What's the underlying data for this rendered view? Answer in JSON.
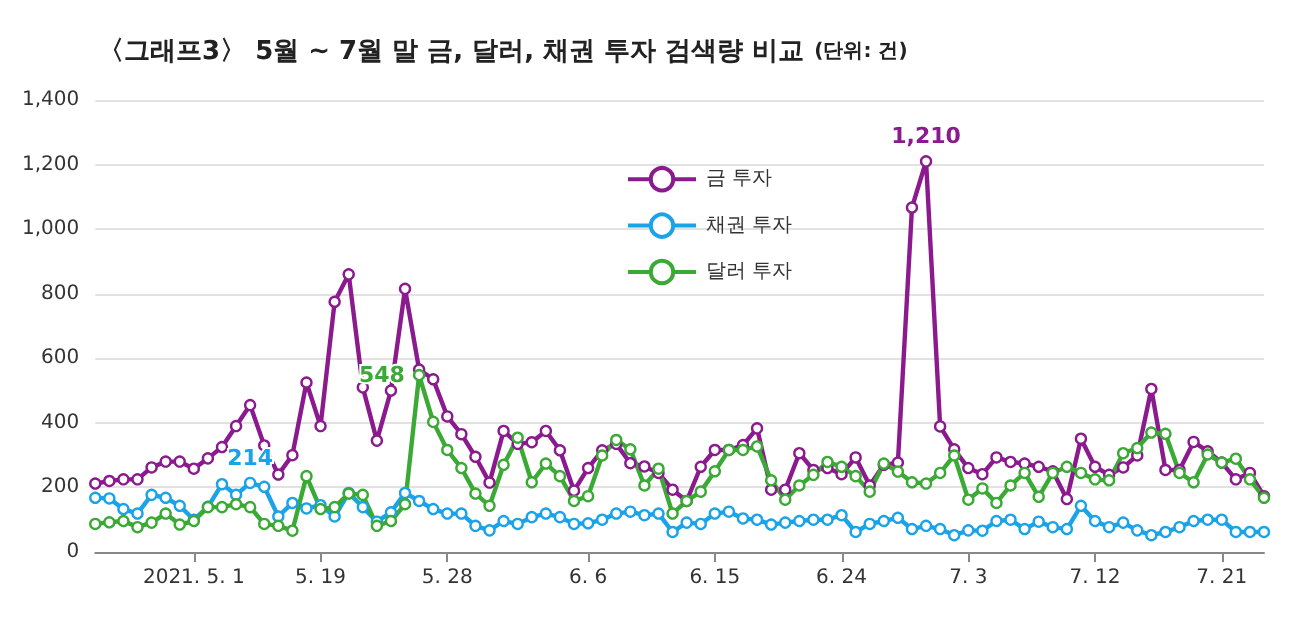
{
  "chart_data": {
    "type": "line",
    "title": "〈그래프3〉 5월 ~ 7월 말 금, 달러, 채권 투자 검색량 비교",
    "subtitle": "(단위: 건)",
    "categories": [
      null,
      null,
      null,
      null,
      null,
      null,
      null,
      "2021. 5. 1",
      null,
      null,
      null,
      null,
      null,
      null,
      null,
      null,
      "5. 19",
      null,
      null,
      null,
      null,
      null,
      null,
      null,
      null,
      "5. 28",
      null,
      null,
      null,
      null,
      null,
      null,
      null,
      null,
      null,
      "6. 6",
      null,
      null,
      null,
      null,
      null,
      null,
      null,
      null,
      "6. 15",
      null,
      null,
      null,
      null,
      null,
      null,
      null,
      null,
      "6. 24",
      null,
      null,
      null,
      null,
      null,
      null,
      null,
      null,
      "7. 3",
      null,
      null,
      null,
      null,
      null,
      null,
      null,
      null,
      "7. 12",
      null,
      null,
      null,
      null,
      null,
      null,
      null,
      null,
      "7. 21",
      null,
      null,
      null
    ],
    "series": [
      {
        "name": "금 투자",
        "color": "#8b1a8f",
        "values": [
          212,
          220,
          225,
          225,
          262,
          280,
          280,
          258,
          290,
          325,
          390,
          455,
          330,
          240,
          300,
          525,
          390,
          775,
          860,
          510,
          345,
          500,
          815,
          565,
          535,
          420,
          365,
          295,
          215,
          375,
          335,
          340,
          375,
          315,
          190,
          260,
          315,
          335,
          275,
          265,
          245,
          193,
          158,
          264,
          316,
          316,
          331,
          383,
          193,
          193,
          306,
          254,
          260,
          241,
          293,
          206,
          270,
          277,
          1067,
          1210,
          389,
          318,
          260,
          241,
          293,
          279,
          274,
          264,
          250,
          164,
          351,
          264,
          239,
          262,
          299,
          505,
          254,
          254,
          341,
          312,
          277,
          225,
          245,
          173
        ],
        "value_labels": [
          null,
          null,
          null,
          null,
          null,
          null,
          null,
          null,
          null,
          null,
          null,
          null,
          null,
          null,
          null,
          null,
          null,
          null,
          null,
          null,
          null,
          null,
          null,
          null,
          null,
          null,
          null,
          null,
          null,
          null,
          null,
          null,
          null,
          null,
          null,
          null,
          null,
          null,
          null,
          null,
          null,
          null,
          null,
          null,
          null,
          null,
          null,
          null,
          null,
          null,
          null,
          null,
          null,
          null,
          null,
          null,
          null,
          null,
          null,
          "1,210",
          null,
          null,
          null,
          null,
          null,
          null,
          null,
          null,
          null,
          null,
          null,
          null,
          null,
          null,
          null,
          null,
          null,
          null,
          null,
          null,
          null,
          null,
          null,
          null
        ]
      },
      {
        "name": "채권 투자",
        "color": "#1aa3e8",
        "values": [
          168,
          166,
          133,
          119,
          177,
          168,
          143,
          100,
          140,
          210,
          177,
          214,
          202,
          110,
          152,
          135,
          145,
          110,
          183,
          139,
          94,
          123,
          183,
          158,
          133,
          119,
          119,
          81,
          67,
          96,
          87,
          108,
          119,
          108,
          87,
          89,
          100,
          119,
          125,
          114,
          119,
          62,
          91,
          87,
          119,
          125,
          104,
          100,
          85,
          91,
          96,
          100,
          100,
          114,
          62,
          87,
          96,
          106,
          71,
          81,
          71,
          52,
          67,
          66,
          96,
          100,
          71,
          94,
          77,
          71,
          143,
          96,
          77,
          91,
          67,
          52,
          62,
          77,
          96,
          100,
          100,
          62,
          62,
          62
        ],
        "value_labels": [
          null,
          null,
          null,
          null,
          null,
          null,
          null,
          null,
          null,
          null,
          null,
          "214",
          null,
          null,
          null,
          null,
          null,
          null,
          null,
          null,
          null,
          null,
          null,
          null,
          null,
          null,
          null,
          null,
          null,
          null,
          null,
          null,
          null,
          null,
          null,
          null,
          null,
          null,
          null,
          null,
          null,
          null,
          null,
          null,
          null,
          null,
          null,
          null,
          null,
          null,
          null,
          null,
          null,
          null,
          null,
          null,
          null,
          null,
          null,
          null,
          null,
          null,
          null,
          null,
          null,
          null,
          null,
          null,
          null,
          null,
          null,
          null,
          null,
          null,
          null,
          null,
          null,
          null,
          null,
          null,
          null,
          null,
          null,
          null
        ]
      },
      {
        "name": "달러 투자",
        "color": "#3aaa35",
        "values": [
          87,
          92,
          96,
          77,
          91,
          119,
          85,
          96,
          139,
          139,
          148,
          139,
          87,
          81,
          66,
          235,
          133,
          139,
          181,
          177,
          81,
          96,
          148,
          548,
          403,
          316,
          260,
          181,
          143,
          270,
          354,
          216,
          274,
          235,
          158,
          173,
          299,
          347,
          318,
          206,
          258,
          119,
          158,
          187,
          250,
          316,
          316,
          327,
          222,
          162,
          206,
          239,
          279,
          264,
          235,
          187,
          274,
          249,
          216,
          212,
          245,
          299,
          162,
          197,
          152,
          206,
          245,
          171,
          245,
          264,
          245,
          225,
          222,
          306,
          322,
          370,
          366,
          245,
          216,
          302,
          277,
          289,
          225,
          168
        ],
        "value_labels": [
          null,
          null,
          null,
          null,
          null,
          null,
          null,
          null,
          null,
          null,
          null,
          null,
          null,
          null,
          null,
          null,
          null,
          null,
          null,
          null,
          null,
          null,
          null,
          "548",
          null,
          null,
          null,
          null,
          null,
          null,
          null,
          null,
          null,
          null,
          null,
          null,
          null,
          null,
          null,
          null,
          null,
          null,
          null,
          null,
          null,
          null,
          null,
          null,
          null,
          null,
          null,
          null,
          null,
          null,
          null,
          null,
          null,
          null,
          null,
          null,
          null,
          null,
          null,
          null,
          null,
          null,
          null,
          null,
          null,
          null,
          null,
          null,
          null,
          null,
          null,
          null,
          null,
          null,
          null,
          null,
          null,
          null,
          null,
          null
        ]
      }
    ],
    "ylim": [
      0,
      1400
    ],
    "yticks": [
      0,
      200,
      400,
      600,
      800,
      {
        "value": 1000,
        "label": "1,000"
      },
      {
        "value": 1200,
        "label": "1,200"
      },
      {
        "value": 1400,
        "label": "1,400"
      }
    ],
    "grid": "y",
    "legend": "top",
    "marker": "circle",
    "line_style": "solid"
  }
}
